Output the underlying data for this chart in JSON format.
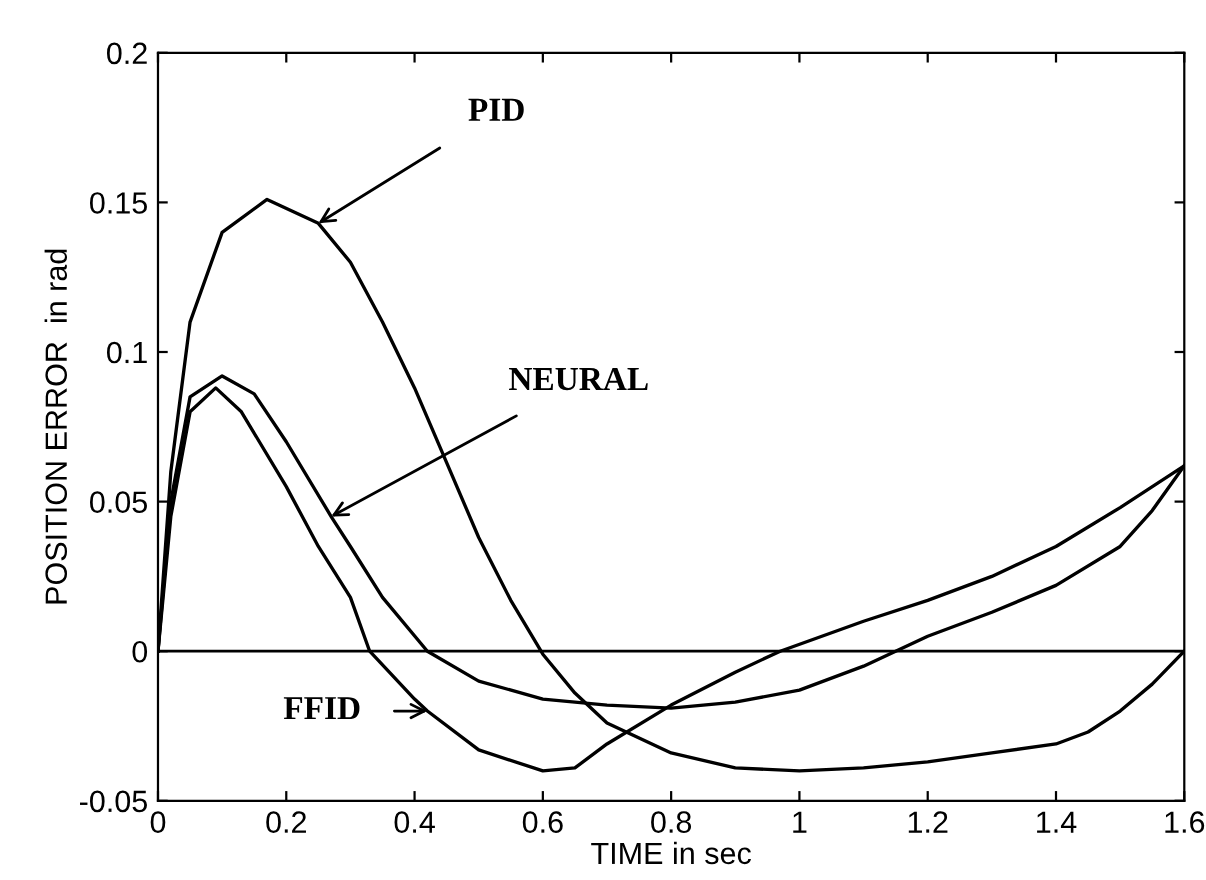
{
  "chart_data": {
    "type": "line",
    "xlabel": "TIME in sec",
    "ylabel": "POSITION ERROR  in rad",
    "xlim": [
      0,
      1.6
    ],
    "ylim": [
      -0.05,
      0.2
    ],
    "xticks": [
      0,
      0.2,
      0.4,
      0.6,
      0.8,
      1,
      1.2,
      1.4,
      1.6
    ],
    "yticks": [
      -0.05,
      0,
      0.05,
      0.1,
      0.15,
      0.2
    ],
    "grid": false,
    "legend": false,
    "line_style": "solid",
    "marker": "none",
    "ref_lines": [
      {
        "axis": "y",
        "value": 0,
        "color": "#000000"
      }
    ],
    "series": [
      {
        "color": "#000000",
        "x": [
          0,
          0.02,
          0.05,
          0.1,
          0.17,
          0.25,
          0.3,
          0.35,
          0.4,
          0.45,
          0.5,
          0.55,
          0.6,
          0.65,
          0.7,
          0.8,
          0.9,
          1.0,
          1.1,
          1.2,
          1.3,
          1.4,
          1.45,
          1.5,
          1.55,
          1.6
        ],
        "values": [
          0,
          0.06,
          0.11,
          0.14,
          0.151,
          0.143,
          0.13,
          0.11,
          0.088,
          0.063,
          0.038,
          0.017,
          -0.001,
          -0.014,
          -0.024,
          -0.034,
          -0.039,
          -0.04,
          -0.039,
          -0.037,
          -0.034,
          -0.031,
          -0.027,
          -0.02,
          -0.011,
          0
        ]
      },
      {
        "color": "#000000",
        "x": [
          0,
          0.02,
          0.05,
          0.1,
          0.15,
          0.2,
          0.27,
          0.3,
          0.35,
          0.42,
          0.5,
          0.6,
          0.7,
          0.8,
          0.9,
          1.0,
          1.1,
          1.15,
          1.2,
          1.3,
          1.4,
          1.5,
          1.55,
          1.6
        ],
        "values": [
          0,
          0.05,
          0.085,
          0.092,
          0.086,
          0.07,
          0.045,
          0.035,
          0.018,
          0,
          -0.01,
          -0.016,
          -0.018,
          -0.019,
          -0.017,
          -0.013,
          -0.005,
          0,
          0.005,
          0.013,
          0.022,
          0.035,
          0.047,
          0.062
        ]
      },
      {
        "color": "#000000",
        "x": [
          0,
          0.02,
          0.05,
          0.09,
          0.13,
          0.2,
          0.25,
          0.3,
          0.33,
          0.4,
          0.42,
          0.5,
          0.6,
          0.65,
          0.7,
          0.8,
          0.9,
          0.97,
          1.1,
          1.2,
          1.3,
          1.4,
          1.5,
          1.6
        ],
        "values": [
          0,
          0.045,
          0.08,
          0.088,
          0.08,
          0.055,
          0.035,
          0.018,
          0,
          -0.016,
          -0.02,
          -0.033,
          -0.04,
          -0.039,
          -0.031,
          -0.018,
          -0.007,
          0,
          0.01,
          0.017,
          0.025,
          0.035,
          0.048,
          0.062
        ]
      }
    ],
    "annotations": [
      {
        "text": "PID",
        "x": 0.25,
        "y": 0.143
      },
      {
        "text": "NEURAL",
        "x": 0.27,
        "y": 0.045
      },
      {
        "text": "FFID",
        "x": 0.42,
        "y": -0.02
      }
    ]
  }
}
